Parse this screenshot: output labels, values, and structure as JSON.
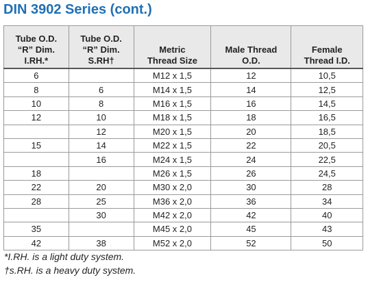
{
  "header": {
    "title": "DIN 3902 Series (cont.)"
  },
  "table": {
    "columns": [
      [
        "Tube O.D.",
        "“R” Dim.",
        "I.RH.*"
      ],
      [
        "Tube O.D.",
        "“R” Dim.",
        "S.RH†"
      ],
      [
        "Metric",
        "Thread Size"
      ],
      [
        "Male Thread",
        "O.D."
      ],
      [
        "Female",
        "Thread I.D."
      ]
    ],
    "rows": [
      [
        "6",
        null,
        "M12 x 1,5",
        "12",
        "10,5"
      ],
      [
        "8",
        "6",
        "M14 x 1,5",
        "14",
        "12,5"
      ],
      [
        "10",
        "8",
        "M16 x 1,5",
        "16",
        "14,5"
      ],
      [
        "12",
        "10",
        "M18 x 1,5",
        "18",
        "16,5"
      ],
      [
        null,
        "12",
        "M20 x 1,5",
        "20",
        "18,5"
      ],
      [
        "15",
        "14",
        "M22 x 1,5",
        "22",
        "20,5"
      ],
      [
        null,
        "16",
        "M24 x 1,5",
        "24",
        "22,5"
      ],
      [
        "18",
        null,
        "M26 x 1,5",
        "26",
        "24,5"
      ],
      [
        "22",
        "20",
        "M30 x 2,0",
        "30",
        "28"
      ],
      [
        "28",
        "25",
        "M36 x 2,0",
        "36",
        "34"
      ],
      [
        null,
        "30",
        "M42 x 2,0",
        "42",
        "40"
      ],
      [
        "35",
        null,
        "M45 x 2,0",
        "45",
        "43"
      ],
      [
        "42",
        "38",
        "M52 x 2,0",
        "52",
        "50"
      ]
    ]
  },
  "footnotes": [
    "*I.RH. is a light duty system.",
    "†s.RH. is a heavy duty system."
  ]
}
